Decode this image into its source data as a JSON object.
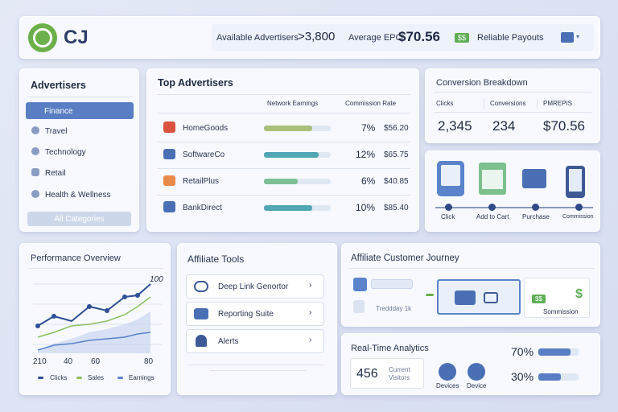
{
  "header": {
    "logo": "CJ",
    "available_label": "Available Advertisers",
    "available_value": ">3,800",
    "epc_label": "Average EPC:",
    "epc_value": "$70.56",
    "payout_badge": "$$",
    "payout_label": "Reliable Payouts"
  },
  "advertisers": {
    "title": "Advertisers",
    "categories": [
      "Finance",
      "Travel",
      "Technology",
      "Retail",
      "Health & Wellness"
    ],
    "button": "All Categories"
  },
  "top_advertisers": {
    "title": "Top Advertisers",
    "columns": [
      "Network Earnings",
      "Commission Rate"
    ],
    "rows": [
      [
        "HomeGoods",
        "7%",
        "$56.20"
      ],
      [
        "SoftwareCo",
        "12%",
        "$65.75"
      ],
      [
        "RetailPlus",
        "6%",
        "$40.85"
      ],
      [
        "BankDirect",
        "10%",
        "$85.40"
      ]
    ]
  },
  "conversion": {
    "title": "Conversion Breakdown",
    "labels": [
      "Clicks",
      "Conversions",
      "PMREPIS"
    ],
    "values": [
      "2,345",
      "234",
      "$70.56"
    ]
  },
  "funnel": {
    "steps": [
      "Click",
      "Add to Cart",
      "Purchase",
      "Commission"
    ]
  },
  "performance": {
    "title": "Performance Overview",
    "annotation": "100",
    "x_labels": [
      "210",
      "40",
      "60",
      "80"
    ],
    "legend": [
      "Clicks",
      "Sales",
      "Earnings"
    ]
  },
  "tools": {
    "title": "Affiliate Tools",
    "items": [
      "Deep Link Genortor",
      "Reporting Suite",
      "Alerts"
    ]
  },
  "journey": {
    "title": "Affiliate Customer Journey",
    "caption": "Treddday 1k",
    "badge": "$$",
    "dollar": "$",
    "commission": "Sommission"
  },
  "analytics": {
    "title": "Real-Time Analytics",
    "visitors": "456",
    "visitors_label": "Current Visitors",
    "devices": [
      "Devices",
      "Device"
    ],
    "shares": [
      "70%",
      "30%"
    ]
  }
}
